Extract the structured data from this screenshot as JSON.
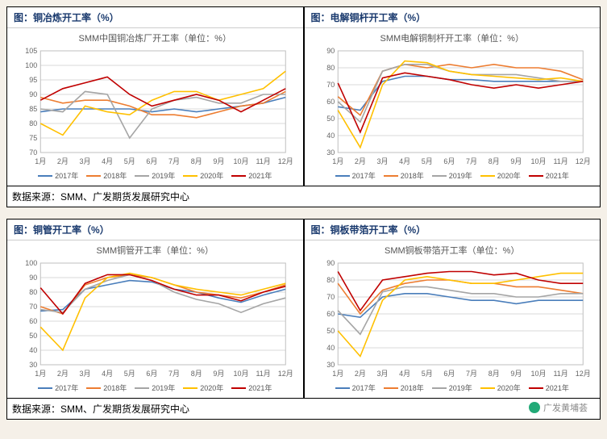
{
  "months": [
    "1月",
    "2月",
    "3月",
    "4月",
    "5月",
    "6月",
    "7月",
    "8月",
    "9月",
    "10月",
    "11月",
    "12月"
  ],
  "series_meta": [
    {
      "key": "y2017",
      "label": "2017年",
      "color": "#4a7ebb"
    },
    {
      "key": "y2018",
      "label": "2018年",
      "color": "#ed7d31"
    },
    {
      "key": "y2019",
      "label": "2019年",
      "color": "#a5a5a5"
    },
    {
      "key": "y2020",
      "label": "2020年",
      "color": "#ffc000"
    },
    {
      "key": "y2021",
      "label": "2021年",
      "color": "#c00000"
    }
  ],
  "style": {
    "grid_color": "#d9d9d9",
    "axis_color": "#bfbfbf",
    "tick_font_size": 9,
    "tick_color": "#666",
    "line_width": 1.6,
    "background": "#ffffff",
    "title_color": "#555",
    "title_fontsize": 11,
    "header_color": "#1a3a6e",
    "header_fontsize": 12
  },
  "blocks": [
    {
      "source": "数据来源：SMM、广发期货发展研究中心",
      "charts": [
        {
          "id": "smelter",
          "header": "图：铜冶炼开工率（%）",
          "title": "SMM中国铜冶炼厂开工率（单位：%）",
          "ylim": [
            70,
            105
          ],
          "ytick_step": 5,
          "data": {
            "y2017": [
              84,
              85,
              85,
              85,
              85,
              84,
              85,
              84,
              85,
              86,
              87,
              89
            ],
            "y2018": [
              89,
              87,
              88,
              88,
              86,
              83,
              83,
              82,
              84,
              86,
              87,
              91
            ],
            "y2019": [
              85,
              84,
              91,
              90,
              75,
              85,
              88,
              89,
              87,
              87,
              90,
              90
            ],
            "y2020": [
              80,
              76,
              86,
              84,
              83,
              88,
              91,
              91,
              88,
              90,
              92,
              98
            ],
            "y2021": [
              88,
              92,
              94,
              96,
              90,
              86,
              88,
              90,
              88,
              84,
              88,
              92
            ]
          }
        },
        {
          "id": "rod",
          "header": "图：电解铜杆开工率（%）",
          "title": "SMM电解铜制杆开工率（单位：%）",
          "ylim": [
            30,
            90
          ],
          "ytick_step": 10,
          "data": {
            "y2017": [
              57,
              55,
              72,
              75,
              75,
              73,
              73,
              72,
              72,
              72,
              72,
              72
            ],
            "y2018": [
              63,
              52,
              78,
              82,
              80,
              82,
              80,
              82,
              80,
              80,
              78,
              73
            ],
            "y2019": [
              60,
              48,
              78,
              82,
              82,
              78,
              76,
              76,
              76,
              74,
              72,
              72
            ],
            "y2020": [
              55,
              33,
              70,
              84,
              83,
              78,
              76,
              75,
              74,
              73,
              74,
              72
            ],
            "y2021": [
              71,
              42,
              74,
              77,
              75,
              73,
              70,
              68,
              70,
              68,
              70,
              72
            ]
          }
        }
      ]
    },
    {
      "source": "数据来源：SMM、广发期货发展研究中心",
      "watermark": "广发黄埔荟",
      "charts": [
        {
          "id": "tube",
          "header": "图：铜管开工率（%）",
          "title": "SMM铜管开工率（单位：%）",
          "ylim": [
            30,
            100
          ],
          "ytick_step": 10,
          "data": {
            "y2017": [
              67,
              68,
              82,
              85,
              88,
              87,
              82,
              80,
              76,
              73,
              78,
              82
            ],
            "y2018": [
              70,
              65,
              85,
              90,
              92,
              90,
              85,
              80,
              78,
              76,
              80,
              85
            ],
            "y2019": [
              68,
              66,
              82,
              88,
              92,
              88,
              80,
              75,
              72,
              66,
              72,
              76
            ],
            "y2020": [
              56,
              40,
              76,
              90,
              93,
              90,
              85,
              82,
              80,
              78,
              82,
              86
            ],
            "y2021": [
              83,
              65,
              86,
              92,
              92,
              88,
              82,
              78,
              78,
              74,
              80,
              84
            ]
          }
        },
        {
          "id": "strip",
          "header": "图：铜板带箔开工率（%）",
          "title": "SMM铜板带箔开工率（单位：%）",
          "ylim": [
            30,
            90
          ],
          "ytick_step": 10,
          "data": {
            "y2017": [
              60,
              58,
              70,
              72,
              72,
              70,
              68,
              68,
              66,
              68,
              68,
              68
            ],
            "y2018": [
              78,
              60,
              74,
              78,
              80,
              80,
              78,
              78,
              76,
              76,
              74,
              72
            ],
            "y2019": [
              62,
              48,
              73,
              76,
              76,
              74,
              72,
              72,
              70,
              70,
              72,
              72
            ],
            "y2020": [
              50,
              35,
              68,
              80,
              82,
              80,
              78,
              78,
              80,
              82,
              84,
              84
            ],
            "y2021": [
              85,
              62,
              80,
              82,
              84,
              85,
              85,
              83,
              84,
              80,
              78,
              78
            ]
          }
        }
      ]
    }
  ]
}
